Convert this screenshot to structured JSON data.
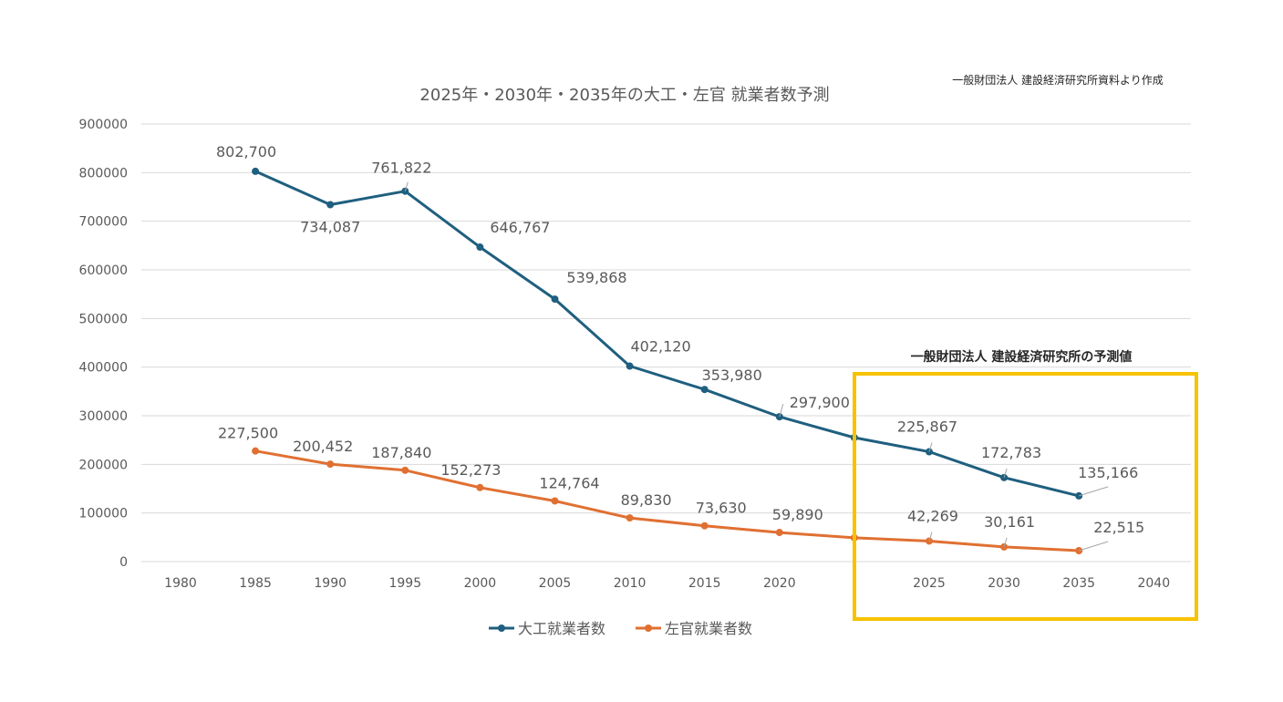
{
  "chart_data": {
    "type": "line",
    "title": "2025年・2030年・2035年の大工・左官 就業者数予測",
    "source_note": "一般財団法人 建設経済研究所資料より作成",
    "forecast_label": "一般財団法人 建設経済研究所の予測値",
    "xlabel": "",
    "ylabel": "",
    "categories": [
      "1980",
      "1985",
      "1990",
      "1995",
      "2000",
      "2005",
      "2010",
      "2015",
      "2020",
      "",
      "2025",
      "2030",
      "2035",
      "2040"
    ],
    "ylim": [
      0,
      900000
    ],
    "yticks": [
      "0",
      "100000",
      "200000",
      "300000",
      "400000",
      "500000",
      "600000",
      "700000",
      "800000",
      "900000"
    ],
    "ytick_values": [
      0,
      100000,
      200000,
      300000,
      400000,
      500000,
      600000,
      700000,
      800000,
      900000
    ],
    "grid": true,
    "legend_position": "bottom",
    "series": [
      {
        "name": "大工就業者数",
        "color": "#1f5f7f",
        "values": [
          null,
          802700,
          734087,
          761822,
          646767,
          539868,
          402120,
          353980,
          297900,
          255000,
          225867,
          172783,
          135166,
          null
        ],
        "labels": [
          null,
          "802,700",
          "734,087",
          "761,822",
          "646,767",
          "539,868",
          "402,120",
          "353,980",
          "297,900",
          null,
          "225,867",
          "172,783",
          "135,166",
          null
        ]
      },
      {
        "name": "左官就業者数",
        "color": "#e07032",
        "values": [
          null,
          227500,
          200452,
          187840,
          152273,
          124764,
          89830,
          73630,
          59890,
          49000,
          42269,
          30161,
          22515,
          null
        ],
        "labels": [
          null,
          "227,500",
          "200,452",
          "187,840",
          "152,273",
          "124,764",
          "89,830",
          "73,630",
          "59,890",
          null,
          "42,269",
          "30,161",
          "22,515",
          null
        ]
      }
    ],
    "highlight_color": "#f7c200"
  }
}
